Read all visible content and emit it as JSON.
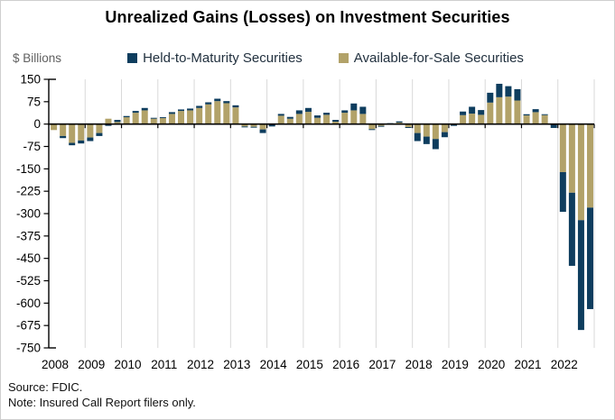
{
  "title": "Unrealized Gains (Losses) on Investment Securities",
  "y_axis_label": "$ Billions",
  "legend": [
    {
      "label": "Held-to-Maturity Securities",
      "color": "#0e3d5e"
    },
    {
      "label": "Available-for-Sale Securities",
      "color": "#b2a269"
    }
  ],
  "footer": {
    "source": "Source: FDIC.",
    "note": "Note: Insured Call Report filers only."
  },
  "colors": {
    "htm_navy": "#0e3d5e",
    "afs_tan": "#b2a269",
    "gridline": "#d9d9d9",
    "axis": "#000000"
  },
  "chart_data": {
    "type": "bar",
    "stacked": true,
    "title": "Unrealized Gains (Losses) on Investment Securities",
    "ylabel": "$ Billions",
    "ylim": [
      -750,
      150
    ],
    "yticks": [
      150,
      75,
      0,
      -75,
      -150,
      -225,
      -300,
      -375,
      -450,
      -525,
      -600,
      -675,
      -750
    ],
    "grid": "vertical-year-boundaries",
    "legend_position": "top",
    "years": [
      2008,
      2009,
      2010,
      2011,
      2012,
      2013,
      2014,
      2015,
      2016,
      2017,
      2018,
      2019,
      2020,
      2021,
      2022
    ],
    "categories": [
      "2008 Q1",
      "2008 Q2",
      "2008 Q3",
      "2008 Q4",
      "2009 Q1",
      "2009 Q2",
      "2009 Q3",
      "2009 Q4",
      "2010 Q1",
      "2010 Q2",
      "2010 Q3",
      "2010 Q4",
      "2011 Q1",
      "2011 Q2",
      "2011 Q3",
      "2011 Q4",
      "2012 Q1",
      "2012 Q2",
      "2012 Q3",
      "2012 Q4",
      "2013 Q1",
      "2013 Q2",
      "2013 Q3",
      "2013 Q4",
      "2014 Q1",
      "2014 Q2",
      "2014 Q3",
      "2014 Q4",
      "2015 Q1",
      "2015 Q2",
      "2015 Q3",
      "2015 Q4",
      "2016 Q1",
      "2016 Q2",
      "2016 Q3",
      "2016 Q4",
      "2017 Q1",
      "2017 Q2",
      "2017 Q3",
      "2017 Q4",
      "2018 Q1",
      "2018 Q2",
      "2018 Q3",
      "2018 Q4",
      "2019 Q1",
      "2019 Q2",
      "2019 Q3",
      "2019 Q4",
      "2020 Q1",
      "2020 Q2",
      "2020 Q3",
      "2020 Q4",
      "2021 Q1",
      "2021 Q2",
      "2021 Q3",
      "2021 Q4",
      "2022 Q1",
      "2022 Q2",
      "2022 Q3",
      "2022 Q4"
    ],
    "series": [
      {
        "name": "Available-for-Sale Securities",
        "color": "#b2a269",
        "values": [
          -20,
          -40,
          -63,
          -55,
          -45,
          -30,
          18,
          7,
          23,
          38,
          46,
          18,
          20,
          34,
          44,
          46,
          54,
          66,
          77,
          70,
          56,
          -8,
          -9,
          -18,
          -2,
          28,
          18,
          34,
          41,
          21,
          31,
          8,
          38,
          46,
          34,
          -17,
          -6,
          1,
          5,
          -10,
          -30,
          -42,
          -50,
          -27,
          -2,
          30,
          35,
          31,
          72,
          90,
          92,
          79,
          29,
          40,
          30,
          -2,
          -161,
          -230,
          -322,
          -280
        ]
      },
      {
        "name": "Held-to-Maturity Securities",
        "color": "#0e3d5e",
        "values": [
          0,
          -7,
          -8,
          -10,
          -12,
          -10,
          -6,
          7,
          4,
          6,
          8,
          3,
          3,
          6,
          5,
          6,
          7,
          7,
          8,
          7,
          7,
          -3,
          -2,
          -12,
          -6,
          6,
          6,
          12,
          13,
          8,
          7,
          6,
          8,
          23,
          24,
          -3,
          -3,
          2,
          4,
          -2,
          -27,
          -25,
          -34,
          -17,
          -4,
          12,
          23,
          16,
          33,
          45,
          35,
          38,
          4,
          10,
          3,
          -11,
          -133,
          -245,
          -368,
          -340
        ]
      }
    ]
  }
}
